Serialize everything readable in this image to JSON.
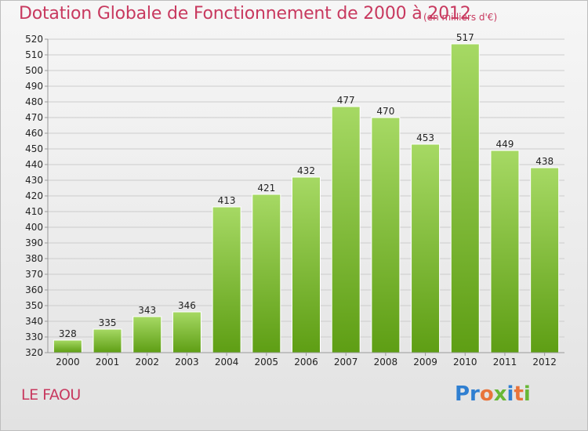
{
  "page": {
    "title": "Dotation Globale de Fonctionnement de 2000 à 2012",
    "subtitle": "(en milliers d'€)",
    "city": "LE FAOU",
    "logo_text": "Proxiti"
  },
  "colors": {
    "title": "#c8395f",
    "bar_top": "#a6d964",
    "bar_bottom": "#5e9e14",
    "grid": "#cccccc",
    "axis_text": "#222222"
  },
  "chart_data": {
    "type": "bar",
    "title": "Dotation Globale de Fonctionnement de 2000 à 2012",
    "subtitle": "(en milliers d'€)",
    "xlabel": "",
    "ylabel": "",
    "categories": [
      "2000",
      "2001",
      "2002",
      "2003",
      "2004",
      "2005",
      "2006",
      "2007",
      "2008",
      "2009",
      "2010",
      "2011",
      "2012"
    ],
    "values": [
      328,
      335,
      343,
      346,
      413,
      421,
      432,
      477,
      470,
      453,
      517,
      449,
      438
    ],
    "ylim": [
      320,
      520
    ],
    "ytick_step": 10,
    "grid": true,
    "legend": "none"
  }
}
